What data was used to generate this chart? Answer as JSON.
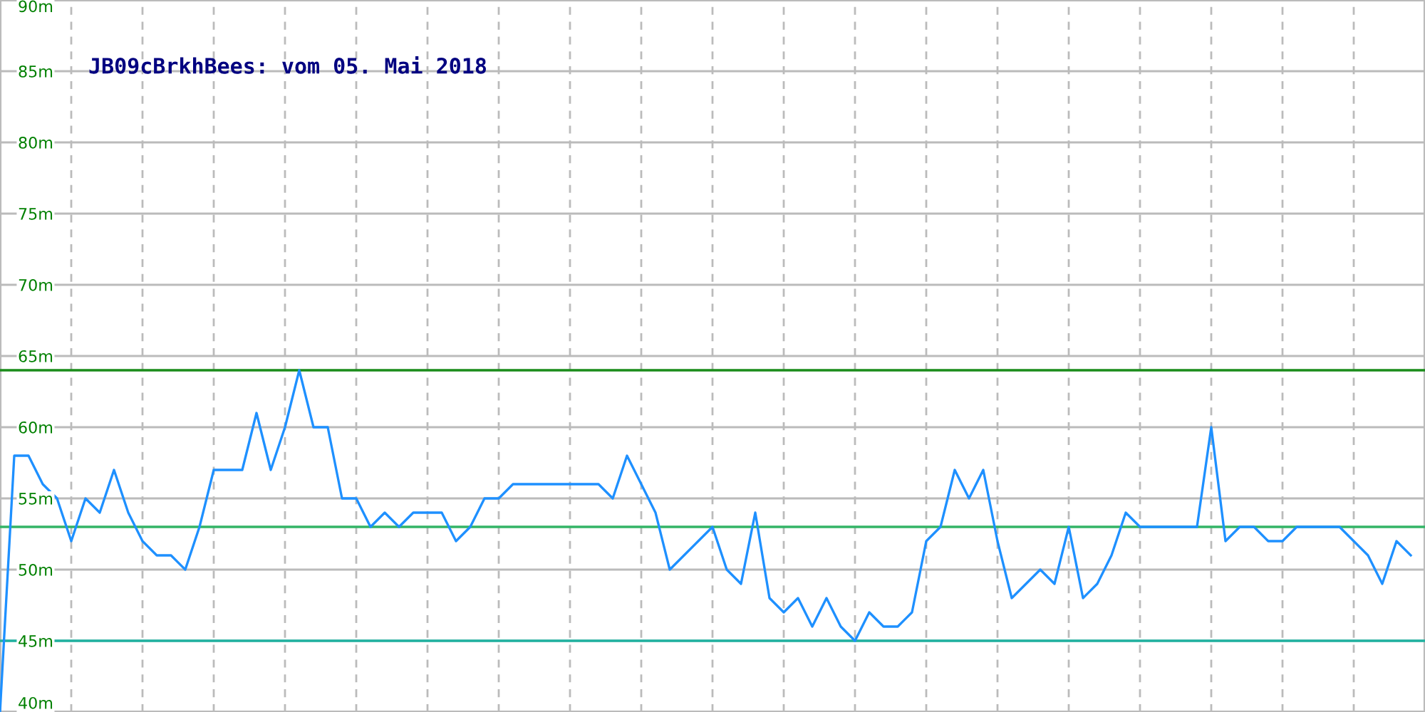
{
  "chart_data": {
    "type": "line",
    "title": "JB09cBrkhBees: vom 05. Mai 2018",
    "categories": [
      null,
      null,
      null,
      null,
      null,
      null,
      null,
      null,
      null,
      null,
      null,
      null,
      null,
      null,
      null,
      null,
      null,
      null,
      null,
      null,
      null,
      null,
      null,
      null,
      null,
      null,
      null,
      null,
      null,
      null,
      null,
      null,
      null,
      null,
      null,
      null,
      null,
      null,
      null,
      null,
      null,
      null,
      null,
      null,
      null,
      null,
      null,
      null,
      null,
      null,
      null,
      null,
      null,
      null,
      null,
      null,
      null,
      null,
      null,
      null,
      null,
      null,
      null,
      null,
      null,
      null,
      null,
      null,
      null,
      null,
      null,
      null,
      null,
      null,
      null,
      null,
      null,
      null,
      null,
      null,
      null,
      null,
      null,
      null,
      null,
      null,
      null,
      null,
      null,
      null,
      null,
      null,
      null,
      null,
      null,
      null,
      null,
      null,
      null,
      null
    ],
    "series": [
      {
        "color": "#1e90ff",
        "values": [
          40,
          58,
          58,
          56,
          55,
          52,
          55,
          54,
          57,
          54,
          52,
          51,
          51,
          50,
          53,
          57,
          57,
          57,
          61,
          57,
          60,
          64,
          60,
          60,
          55,
          55,
          53,
          54,
          53,
          54,
          54,
          54,
          52,
          53,
          55,
          55,
          56,
          56,
          56,
          56,
          56,
          56,
          56,
          55,
          58,
          56,
          54,
          50,
          51,
          52,
          53,
          50,
          49,
          54,
          48,
          47,
          48,
          46,
          48,
          46,
          45,
          47,
          46,
          46,
          47,
          52,
          53,
          57,
          55,
          57,
          52,
          48,
          49,
          50,
          49,
          53,
          48,
          49,
          51,
          54,
          53,
          53,
          53,
          53,
          53,
          60,
          52,
          53,
          53,
          52,
          52,
          53,
          53,
          53,
          53,
          52,
          51,
          49,
          52,
          51
        ]
      }
    ],
    "ylim": [
      40,
      90
    ],
    "yticks": [
      {
        "value": 40,
        "label": "40m"
      },
      {
        "value": 45,
        "label": "45m"
      },
      {
        "value": 50,
        "label": "50m"
      },
      {
        "value": 55,
        "label": "55m"
      },
      {
        "value": 60,
        "label": "60m"
      },
      {
        "value": 65,
        "label": "65m"
      },
      {
        "value": 70,
        "label": "70m"
      },
      {
        "value": 75,
        "label": "75m"
      },
      {
        "value": 80,
        "label": "80m"
      },
      {
        "value": 85,
        "label": "85m"
      },
      {
        "value": 90,
        "label": "90m"
      }
    ],
    "ref_lines": [
      {
        "axis": "y",
        "value": 64,
        "color": "#1a8c1a"
      },
      {
        "axis": "y",
        "value": 53,
        "color": "#33b466"
      },
      {
        "axis": "y",
        "value": 45,
        "color": "#20b2a0"
      }
    ],
    "grid": true,
    "tick_labels": "y",
    "marker": "none",
    "line_style": "solid"
  }
}
